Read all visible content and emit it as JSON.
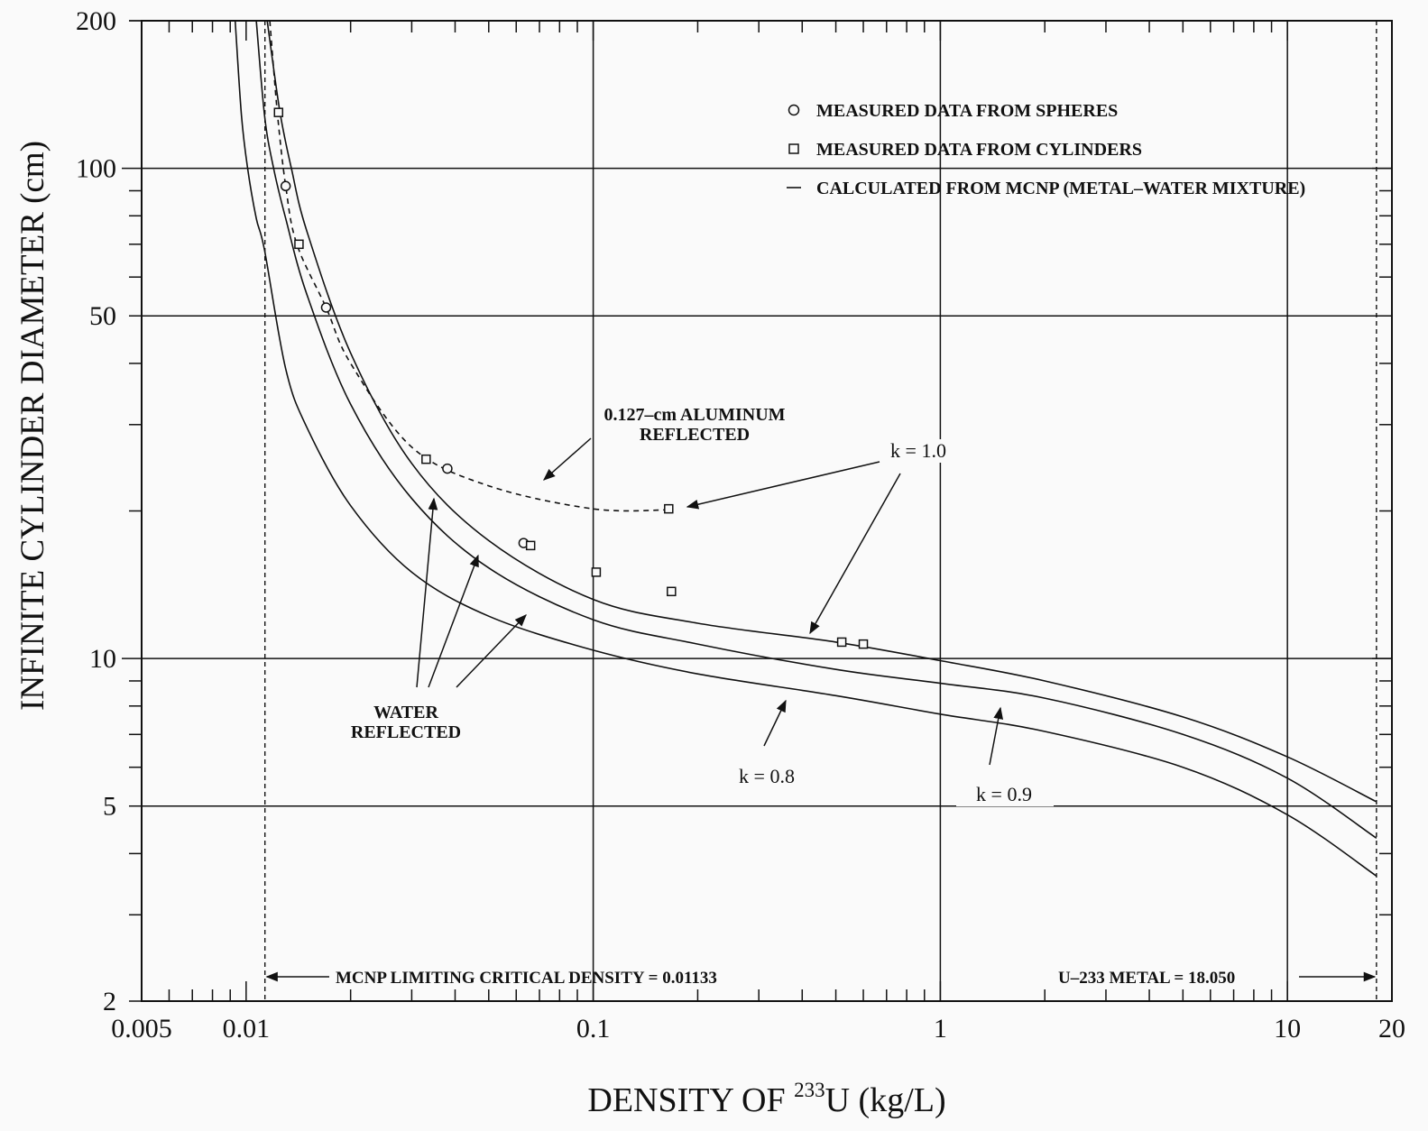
{
  "chart_data": {
    "type": "line",
    "x_scale": "log",
    "y_scale": "log",
    "xlim": [
      0.005,
      20
    ],
    "ylim": [
      2,
      200
    ],
    "xlabel_parts": {
      "prefix": "DENSITY  OF  ",
      "superscript": "233",
      "suffix": "U  (kg/L)"
    },
    "ylabel": "INFINITE  CYLINDER  DIAMETER  (cm)",
    "x_ticks": [
      {
        "value": 0.005,
        "label": "0.005"
      },
      {
        "value": 0.01,
        "label": "0.01"
      },
      {
        "value": 0.1,
        "label": "0.1"
      },
      {
        "value": 1,
        "label": "1"
      },
      {
        "value": 10,
        "label": "10"
      },
      {
        "value": 20,
        "label": "20"
      }
    ],
    "y_ticks": [
      {
        "value": 2,
        "label": "2"
      },
      {
        "value": 5,
        "label": "5"
      },
      {
        "value": 10,
        "label": "10"
      },
      {
        "value": 50,
        "label": "50"
      },
      {
        "value": 100,
        "label": "100"
      },
      {
        "value": 200,
        "label": "200"
      }
    ],
    "grid_x": [
      0.1,
      1,
      10
    ],
    "grid_y": [
      5,
      10,
      50,
      100
    ],
    "legend": {
      "placement": "top-right",
      "entries": [
        {
          "marker": "circle",
          "label": "MEASURED DATA FROM SPHERES"
        },
        {
          "marker": "square",
          "label": "MEASURED DATA FROM CYLINDERS"
        },
        {
          "marker": "line",
          "label": "CALCULATED FROM MCNP (METAL–WATER MIXTURE)"
        }
      ]
    },
    "series": [
      {
        "name": "k = 1.0",
        "style": "solid",
        "x": [
          0.0115,
          0.0125,
          0.0135,
          0.015,
          0.02,
          0.03,
          0.05,
          0.1,
          0.2,
          0.5,
          1,
          2,
          5,
          10,
          18.05
        ],
        "y": [
          200,
          131,
          100,
          74,
          42,
          25,
          17.4,
          13.2,
          11.8,
          10.8,
          9.9,
          9.0,
          7.6,
          6.3,
          5.1
        ]
      },
      {
        "name": "k = 0.9",
        "style": "solid",
        "x": [
          0.0107,
          0.0113,
          0.012,
          0.013,
          0.015,
          0.02,
          0.03,
          0.05,
          0.1,
          0.2,
          0.5,
          1,
          2,
          5,
          10,
          18.05
        ],
        "y": [
          200,
          128,
          100,
          79,
          55,
          33,
          21.2,
          15.3,
          12.0,
          10.7,
          9.5,
          8.9,
          8.3,
          7.0,
          5.7,
          4.3
        ]
      },
      {
        "name": "k = 0.8",
        "style": "solid",
        "x": [
          0.0093,
          0.0097,
          0.0101,
          0.0107,
          0.0113,
          0.013,
          0.015,
          0.02,
          0.03,
          0.05,
          0.1,
          0.2,
          0.5,
          1,
          2,
          5,
          10,
          18.05
        ],
        "y": [
          200,
          128,
          100,
          79,
          68,
          39,
          29.5,
          20.5,
          15,
          12.2,
          10.4,
          9.3,
          8.4,
          7.7,
          7.1,
          6.0,
          4.8,
          3.6
        ]
      },
      {
        "name": "0.127–cm ALUMINUM REFLECTED",
        "style": "dashed",
        "x": [
          0.0117,
          0.0123,
          0.013,
          0.014,
          0.017,
          0.02,
          0.03,
          0.05,
          0.1,
          0.165
        ],
        "y": [
          200,
          130,
          92,
          70,
          52,
          40,
          27,
          22.5,
          20.2,
          20.1
        ]
      }
    ],
    "points": {
      "spheres": [
        {
          "x": 0.013,
          "y": 92
        },
        {
          "x": 0.017,
          "y": 52
        },
        {
          "x": 0.038,
          "y": 24.4
        },
        {
          "x": 0.063,
          "y": 17.2
        }
      ],
      "cylinders": [
        {
          "x": 0.0124,
          "y": 130
        },
        {
          "x": 0.0142,
          "y": 70
        },
        {
          "x": 0.033,
          "y": 25.5
        },
        {
          "x": 0.066,
          "y": 17.0
        },
        {
          "x": 0.102,
          "y": 15.0
        },
        {
          "x": 0.165,
          "y": 20.2
        },
        {
          "x": 0.168,
          "y": 13.7
        },
        {
          "x": 0.52,
          "y": 10.8
        },
        {
          "x": 0.6,
          "y": 10.7
        }
      ]
    },
    "reference_lines": [
      {
        "x": 0.01133,
        "label": "MCNP LIMITING CRITICAL DENSITY = 0.01133"
      },
      {
        "x": 18.05,
        "label": "U–233 METAL = 18.050"
      }
    ],
    "annotations": {
      "k10": "k = 1.0",
      "k09": "k = 0.9",
      "k08": "k = 0.8",
      "aluminum_line1": "0.127–cm ALUMINUM",
      "aluminum_line2": "REFLECTED",
      "water_line1": "WATER",
      "water_line2": "REFLECTED"
    }
  }
}
